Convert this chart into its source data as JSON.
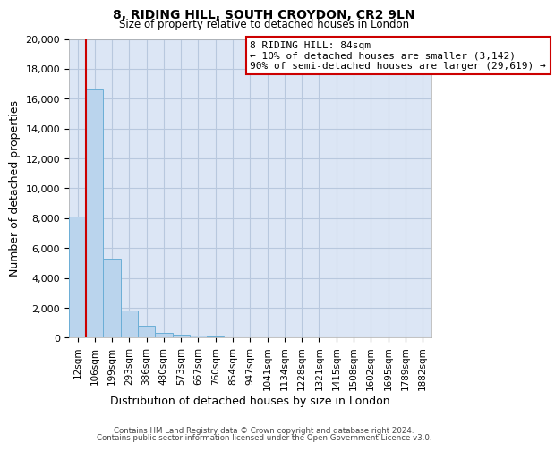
{
  "title": "8, RIDING HILL, SOUTH CROYDON, CR2 9LN",
  "subtitle": "Size of property relative to detached houses in London",
  "xlabel": "Distribution of detached houses by size in London",
  "ylabel": "Number of detached properties",
  "bar_labels": [
    "12sqm",
    "106sqm",
    "199sqm",
    "293sqm",
    "386sqm",
    "480sqm",
    "573sqm",
    "667sqm",
    "760sqm",
    "854sqm",
    "947sqm",
    "1041sqm",
    "1134sqm",
    "1228sqm",
    "1321sqm",
    "1415sqm",
    "1508sqm",
    "1602sqm",
    "1695sqm",
    "1789sqm",
    "1882sqm"
  ],
  "bar_values": [
    8100,
    16600,
    5300,
    1800,
    800,
    300,
    200,
    120,
    80,
    0,
    0,
    0,
    0,
    0,
    0,
    0,
    0,
    0,
    0,
    0,
    0
  ],
  "bar_color": "#bad4ed",
  "bar_edge_color": "#6baed6",
  "ylim": [
    0,
    20000
  ],
  "yticks": [
    0,
    2000,
    4000,
    6000,
    8000,
    10000,
    12000,
    14000,
    16000,
    18000,
    20000
  ],
  "annotation_title": "8 RIDING HILL: 84sqm",
  "annotation_line1": "← 10% of detached houses are smaller (3,142)",
  "annotation_line2": "90% of semi-detached houses are larger (29,619) →",
  "annotation_box_color": "#ffffff",
  "annotation_box_edge": "#cc0000",
  "red_line_color": "#cc0000",
  "footer1": "Contains HM Land Registry data © Crown copyright and database right 2024.",
  "footer2": "Contains public sector information licensed under the Open Government Licence v3.0.",
  "background_color": "#ffffff",
  "plot_bg_color": "#dce6f5",
  "grid_color": "#b8c8de"
}
